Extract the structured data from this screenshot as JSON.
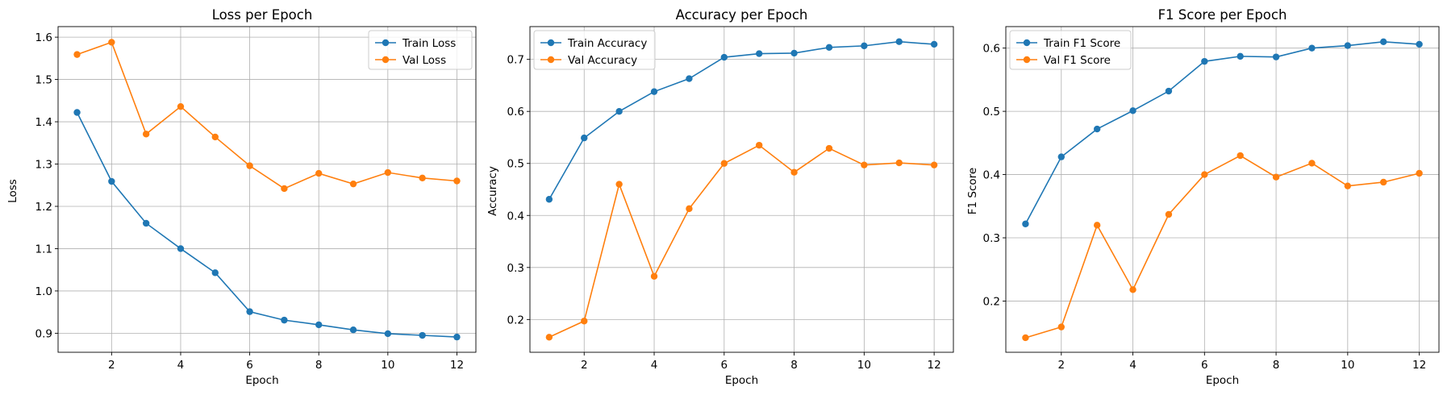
{
  "chart_data": [
    {
      "type": "line",
      "title": "Loss per Epoch",
      "xlabel": "Epoch",
      "ylabel": "Loss",
      "x": [
        1,
        2,
        3,
        4,
        5,
        6,
        7,
        8,
        9,
        10,
        11,
        12
      ],
      "xlim": [
        0.45,
        12.55
      ],
      "xticks": [
        2,
        4,
        6,
        8,
        10,
        12
      ],
      "ylim": [
        0.855,
        1.625
      ],
      "yticks": [
        0.9,
        1.0,
        1.1,
        1.2,
        1.3,
        1.4,
        1.5,
        1.6
      ],
      "grid": true,
      "legend_position": "top-right",
      "series": [
        {
          "name": "Train Loss",
          "color": "#1f77b4",
          "values": [
            1.422,
            1.259,
            1.16,
            1.1,
            1.043,
            0.951,
            0.931,
            0.92,
            0.908,
            0.899,
            0.895,
            0.891
          ]
        },
        {
          "name": "Val Loss",
          "color": "#ff7f0e",
          "values": [
            1.559,
            1.588,
            1.371,
            1.436,
            1.364,
            1.296,
            1.242,
            1.278,
            1.253,
            1.28,
            1.267,
            1.26
          ]
        }
      ]
    },
    {
      "type": "line",
      "title": "Accuracy per Epoch",
      "xlabel": "Epoch",
      "ylabel": "Accuracy",
      "x": [
        1,
        2,
        3,
        4,
        5,
        6,
        7,
        8,
        9,
        10,
        11,
        12
      ],
      "xlim": [
        0.45,
        12.55
      ],
      "xticks": [
        2,
        4,
        6,
        8,
        10,
        12
      ],
      "ylim": [
        0.137,
        0.763
      ],
      "yticks": [
        0.2,
        0.3,
        0.4,
        0.5,
        0.6,
        0.7
      ],
      "grid": true,
      "legend_position": "top-left",
      "series": [
        {
          "name": "Train Accuracy",
          "color": "#1f77b4",
          "values": [
            0.431,
            0.549,
            0.6,
            0.638,
            0.663,
            0.704,
            0.711,
            0.712,
            0.723,
            0.726,
            0.734,
            0.729
          ]
        },
        {
          "name": "Val Accuracy",
          "color": "#ff7f0e",
          "values": [
            0.166,
            0.197,
            0.46,
            0.283,
            0.413,
            0.5,
            0.535,
            0.483,
            0.529,
            0.497,
            0.501,
            0.497
          ]
        }
      ]
    },
    {
      "type": "line",
      "title": "F1 Score per Epoch",
      "xlabel": "Epoch",
      "ylabel": "F1 Score",
      "x": [
        1,
        2,
        3,
        4,
        5,
        6,
        7,
        8,
        9,
        10,
        11,
        12
      ],
      "xlim": [
        0.45,
        12.55
      ],
      "xticks": [
        2,
        4,
        6,
        8,
        10,
        12
      ],
      "ylim": [
        0.119,
        0.634
      ],
      "yticks": [
        0.2,
        0.3,
        0.4,
        0.5,
        0.6
      ],
      "grid": true,
      "legend_position": "top-left",
      "series": [
        {
          "name": "Train F1 Score",
          "color": "#1f77b4",
          "values": [
            0.322,
            0.428,
            0.472,
            0.501,
            0.532,
            0.579,
            0.587,
            0.586,
            0.6,
            0.604,
            0.61,
            0.606
          ]
        },
        {
          "name": "Val F1 Score",
          "color": "#ff7f0e",
          "values": [
            0.142,
            0.159,
            0.32,
            0.218,
            0.337,
            0.4,
            0.43,
            0.396,
            0.418,
            0.382,
            0.388,
            0.402
          ]
        }
      ]
    }
  ]
}
